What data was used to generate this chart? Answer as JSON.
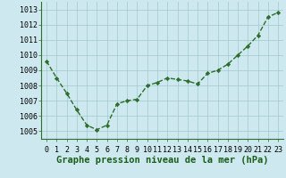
{
  "x": [
    0,
    1,
    2,
    3,
    4,
    5,
    6,
    7,
    8,
    9,
    10,
    11,
    12,
    13,
    14,
    15,
    16,
    17,
    18,
    19,
    20,
    21,
    22,
    23
  ],
  "y": [
    1009.6,
    1008.5,
    1007.5,
    1006.4,
    1005.4,
    1005.1,
    1005.4,
    1006.8,
    1007.0,
    1007.1,
    1008.0,
    1008.2,
    1008.5,
    1008.4,
    1008.3,
    1008.1,
    1008.8,
    1009.0,
    1009.4,
    1010.0,
    1010.6,
    1011.3,
    1012.5,
    1012.8
  ],
  "line_color": "#2d6e2d",
  "marker": "D",
  "marker_size": 2.2,
  "bg_color": "#cde8ee",
  "grid_color": "#a0c8cc",
  "xlabel": "Graphe pression niveau de la mer (hPa)",
  "ylim": [
    1004.5,
    1013.5
  ],
  "yticks": [
    1005,
    1006,
    1007,
    1008,
    1009,
    1010,
    1011,
    1012,
    1013
  ],
  "xtick_labels": [
    "0",
    "1",
    "2",
    "3",
    "4",
    "5",
    "6",
    "7",
    "8",
    "9",
    "10",
    "11",
    "12",
    "13",
    "14",
    "15",
    "16",
    "17",
    "18",
    "19",
    "20",
    "21",
    "22",
    "23"
  ],
  "xlabel_fontsize": 7.5,
  "tick_fontsize": 6.0,
  "linewidth": 1.0
}
